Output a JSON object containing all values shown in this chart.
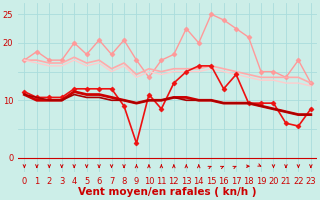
{
  "background_color": "#cceee8",
  "grid_color": "#aadddd",
  "xlabel": "Vent moyen/en rafales ( kn/h )",
  "xlabel_color": "#cc0000",
  "xlabel_fontsize": 7.5,
  "ytick_labels": [
    "0",
    "",
    "10",
    "",
    "20",
    "25"
  ],
  "yticks": [
    0,
    5,
    10,
    15,
    20,
    25
  ],
  "xticks": [
    0,
    1,
    2,
    3,
    4,
    5,
    6,
    7,
    8,
    9,
    10,
    11,
    12,
    13,
    14,
    15,
    16,
    17,
    18,
    19,
    20,
    21,
    22,
    23
  ],
  "ylim": [
    -2.5,
    27
  ],
  "xlim": [
    -0.5,
    23.5
  ],
  "series": [
    {
      "y": [
        17,
        18.5,
        17,
        17,
        20,
        18,
        20.5,
        18,
        20.5,
        17,
        14,
        17,
        18,
        22.5,
        20,
        25,
        24,
        22.5,
        21,
        15,
        15,
        14,
        17,
        13
      ],
      "color": "#ff9999",
      "lw": 1.0,
      "marker": "D",
      "markersize": 2.5
    },
    {
      "y": [
        17,
        17,
        16.5,
        16.5,
        17.5,
        16.5,
        17,
        15.5,
        16.5,
        14.5,
        15.5,
        15,
        15.5,
        15.5,
        15.5,
        16,
        15.5,
        15,
        14.5,
        14,
        14,
        14,
        14,
        13
      ],
      "color": "#ffaaaa",
      "lw": 1.2,
      "marker": null,
      "markersize": 0
    },
    {
      "y": [
        17,
        16.5,
        16,
        16,
        17,
        16,
        16.5,
        15,
        16,
        14,
        15,
        14.5,
        15,
        15,
        15,
        15.5,
        15,
        14.5,
        14,
        13.5,
        13.5,
        13,
        13,
        12.5
      ],
      "color": "#ffcccc",
      "lw": 1.0,
      "marker": null,
      "markersize": 0
    },
    {
      "y": [
        11.5,
        10.5,
        10.5,
        10.5,
        12,
        12,
        12,
        12,
        9,
        2.5,
        11,
        8.5,
        13,
        15,
        16,
        16,
        12,
        14.5,
        9.5,
        9.5,
        9.5,
        6,
        5.5,
        8.5
      ],
      "color": "#ee1111",
      "lw": 1.2,
      "marker": "D",
      "markersize": 2.5
    },
    {
      "y": [
        11,
        10,
        10,
        10,
        11.5,
        11,
        11,
        10.5,
        10,
        9.5,
        10,
        10,
        10.5,
        10.5,
        10,
        10,
        9.5,
        9.5,
        9.5,
        9,
        8.5,
        8,
        7.5,
        7.5
      ],
      "color": "#cc0000",
      "lw": 2.0,
      "marker": null,
      "markersize": 0
    },
    {
      "y": [
        11,
        10.5,
        10,
        10,
        11,
        10.5,
        10.5,
        10,
        10,
        9.5,
        10,
        10,
        10.5,
        10,
        10,
        10,
        9.5,
        9.5,
        9.5,
        9,
        8.5,
        8,
        7.5,
        7.5
      ],
      "color": "#aa0000",
      "lw": 1.2,
      "marker": null,
      "markersize": 0
    }
  ],
  "arrows": {
    "y_data": -1.5,
    "directions": [
      0,
      0,
      0,
      0,
      0,
      0,
      0,
      0,
      0,
      180,
      180,
      180,
      180,
      180,
      180,
      135,
      135,
      135,
      90,
      45,
      0,
      0,
      0,
      0
    ],
    "color": "#cc0000",
    "size": 4.5
  },
  "tick_fontsize": 6,
  "tick_color": "#cc0000",
  "bottom_line_y": 0
}
